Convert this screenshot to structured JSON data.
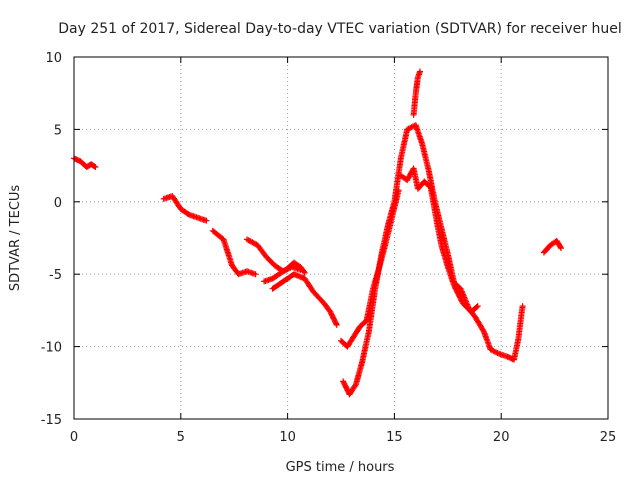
{
  "chart_data": {
    "type": "scatter",
    "title": "Day 251 of 2017, Sidereal Day-to-day VTEC variation (SDTVAR) for receiver huel",
    "xlabel": "GPS time / hours",
    "ylabel": "SDTVAR / TECUs",
    "xlim": [
      0,
      25
    ],
    "ylim": [
      -15,
      10
    ],
    "xticks": [
      0,
      5,
      10,
      15,
      20,
      25
    ],
    "yticks": [
      -15,
      -10,
      -5,
      0,
      5,
      10
    ],
    "grid": true,
    "marker": "+",
    "series": [
      {
        "name": "SDTVAR",
        "color": "#ff0000",
        "segments": [
          [
            [
              0.0,
              3.0
            ],
            [
              0.3,
              2.8
            ],
            [
              0.6,
              2.4
            ],
            [
              0.8,
              2.6
            ],
            [
              1.0,
              2.4
            ]
          ],
          [
            [
              4.2,
              0.2
            ],
            [
              4.6,
              0.4
            ],
            [
              5.0,
              -0.5
            ],
            [
              5.4,
              -0.9
            ],
            [
              5.8,
              -1.1
            ],
            [
              6.2,
              -1.3
            ]
          ],
          [
            [
              6.5,
              -2.0
            ],
            [
              7.0,
              -2.6
            ],
            [
              7.4,
              -4.4
            ],
            [
              7.7,
              -5.0
            ],
            [
              8.1,
              -4.8
            ],
            [
              8.5,
              -5.0
            ]
          ],
          [
            [
              8.1,
              -2.6
            ],
            [
              8.6,
              -3.0
            ],
            [
              9.0,
              -3.8
            ],
            [
              9.4,
              -4.4
            ],
            [
              9.8,
              -4.8
            ],
            [
              10.2,
              -4.5
            ],
            [
              10.6,
              -4.7
            ]
          ],
          [
            [
              8.9,
              -5.5
            ],
            [
              9.3,
              -5.3
            ],
            [
              9.7,
              -4.9
            ],
            [
              10.0,
              -4.6
            ],
            [
              10.3,
              -4.2
            ],
            [
              10.6,
              -4.5
            ],
            [
              10.8,
              -4.9
            ]
          ],
          [
            [
              9.3,
              -6.0
            ],
            [
              9.8,
              -5.5
            ],
            [
              10.3,
              -5.0
            ],
            [
              10.8,
              -5.3
            ],
            [
              11.2,
              -6.2
            ],
            [
              11.7,
              -7.0
            ],
            [
              12.0,
              -7.6
            ],
            [
              12.3,
              -8.5
            ]
          ],
          [
            [
              12.5,
              -9.6
            ],
            [
              12.8,
              -10.0
            ],
            [
              13.1,
              -9.3
            ],
            [
              13.4,
              -8.6
            ],
            [
              13.7,
              -8.2
            ],
            [
              14.0,
              -6.0
            ],
            [
              14.3,
              -4.5
            ],
            [
              14.6,
              -2.8
            ],
            [
              14.9,
              -1.0
            ],
            [
              15.2,
              0.8
            ]
          ],
          [
            [
              12.6,
              -12.4
            ],
            [
              12.9,
              -13.3
            ],
            [
              13.2,
              -12.6
            ],
            [
              13.5,
              -11.0
            ],
            [
              13.8,
              -9.0
            ],
            [
              14.1,
              -6.0
            ],
            [
              14.4,
              -3.6
            ],
            [
              14.7,
              -1.6
            ],
            [
              15.0,
              0.0
            ],
            [
              15.3,
              3.0
            ],
            [
              15.6,
              5.0
            ],
            [
              16.0,
              5.3
            ],
            [
              16.3,
              4.0
            ],
            [
              16.6,
              2.2
            ],
            [
              16.9,
              0.0
            ],
            [
              17.2,
              -1.8
            ],
            [
              17.5,
              -3.6
            ],
            [
              17.8,
              -5.6
            ],
            [
              18.1,
              -6.0
            ],
            [
              18.5,
              -7.4
            ],
            [
              18.8,
              -8.0
            ],
            [
              19.2,
              -9.0
            ],
            [
              19.5,
              -10.2
            ],
            [
              19.9,
              -10.5
            ],
            [
              20.3,
              -10.7
            ],
            [
              20.6,
              -10.9
            ],
            [
              20.8,
              -9.5
            ],
            [
              21.0,
              -7.2
            ]
          ],
          [
            [
              15.3,
              1.8
            ],
            [
              15.6,
              1.5
            ],
            [
              15.9,
              2.3
            ],
            [
              16.1,
              0.9
            ],
            [
              16.4,
              1.4
            ],
            [
              16.7,
              1.0
            ],
            [
              17.0,
              -1.5
            ],
            [
              17.2,
              -3.0
            ],
            [
              17.5,
              -4.5
            ],
            [
              17.8,
              -5.8
            ],
            [
              18.2,
              -7.0
            ],
            [
              18.6,
              -7.6
            ],
            [
              18.9,
              -7.2
            ]
          ],
          [
            [
              15.9,
              6.0
            ],
            [
              16.0,
              7.5
            ],
            [
              16.1,
              8.6
            ],
            [
              16.2,
              9.0
            ]
          ],
          [
            [
              22.0,
              -3.5
            ],
            [
              22.3,
              -3.0
            ],
            [
              22.6,
              -2.7
            ],
            [
              22.8,
              -3.2
            ]
          ]
        ]
      }
    ]
  }
}
